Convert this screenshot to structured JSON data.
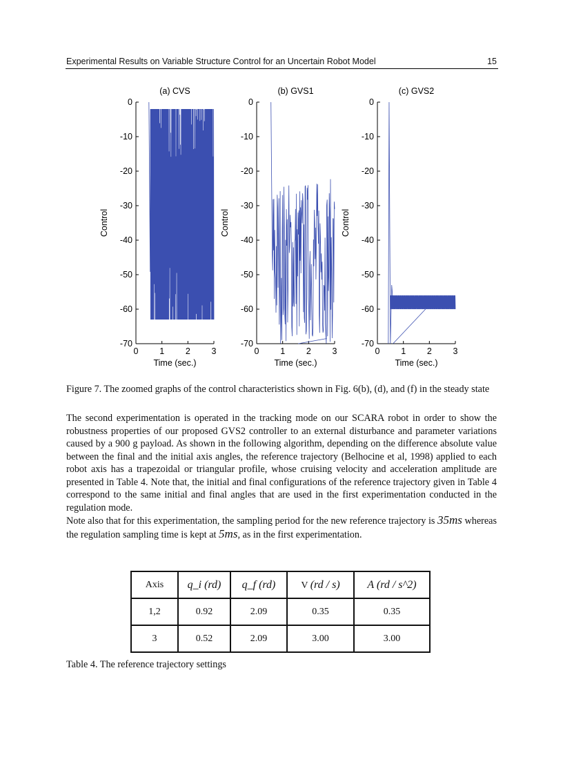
{
  "header": {
    "title": "Experimental Results on Variable Structure Control for an Uncertain Robot Model",
    "page": "15"
  },
  "chart_data": [
    {
      "type": "line",
      "title": "(a) CVS",
      "xlabel": "Time (sec.)",
      "ylabel": "Control",
      "xlim": [
        0,
        3
      ],
      "ylim": [
        -70,
        0
      ],
      "xticks": [
        "0",
        "1",
        "2",
        "3"
      ],
      "yticks": [
        "0",
        "-10",
        "-20",
        "-30",
        "-40",
        "-50",
        "-60",
        "-70"
      ],
      "grid": false,
      "color": "#3b4fb0",
      "series": [
        {
          "start_time": 0.5,
          "end_time": 3.0,
          "peak": 0,
          "band": [
            -63,
            -2
          ]
        }
      ]
    },
    {
      "type": "line",
      "title": "(b) GVS1",
      "xlabel": "Time (sec.)",
      "ylabel": "Control",
      "xlim": [
        0,
        3
      ],
      "ylim": [
        -70,
        0
      ],
      "xticks": [
        "0",
        "1",
        "2",
        "3"
      ],
      "yticks": [
        "0",
        "-10",
        "-20",
        "-30",
        "-40",
        "-50",
        "-60",
        "-70"
      ],
      "grid": false,
      "color": "#3b4fb0",
      "series": [
        {
          "start_time": 0.55,
          "end_time": 3.0,
          "peak": 0,
          "band": [
            -70,
            -22
          ]
        }
      ]
    },
    {
      "type": "line",
      "title": "(c) GVS2",
      "xlabel": "Time (sec.)",
      "ylabel": "Control",
      "xlim": [
        0,
        3
      ],
      "ylim": [
        -70,
        0
      ],
      "xticks": [
        "0",
        "1",
        "2",
        "3"
      ],
      "yticks": [
        "0",
        "-10",
        "-20",
        "-30",
        "-40",
        "-50",
        "-60",
        "-70"
      ],
      "grid": false,
      "color": "#3b4fb0",
      "series": [
        {
          "start_time": 0.45,
          "end_time": 3.0,
          "peak": 0,
          "band": [
            -60,
            -56
          ]
        }
      ]
    }
  ],
  "figure_caption": "Figure 7. The zoomed graphs of the control characteristics shown in Fig. 6(b), (d), and (f) in the steady state",
  "paragraphs": [
    "The second experimentation is operated in the tracking mode on our SCARA robot in order to show the robustness properties of our proposed GVS2 controller to an external disturbance and parameter variations caused by a 900 g payload. As shown in the following algorithm, depending on the difference absolute value between the final and the initial axis angles, the reference trajectory (Belhocine et al, 1998) applied to each robot axis has a trapezoidal or triangular profile, whose cruising velocity and acceleration amplitude are presented in Table 4. Note that, the initial and final configurations of the reference trajectory given in Table 4 correspond to the same initial and final angles that are used in the first experimentation conducted in the regulation mode."
  ],
  "para2": {
    "a": "Note also that for this experimentation, the sampling period for the new reference trajectory is ",
    "m1": "35ms",
    "b": " whereas the regulation sampling time is kept at ",
    "m2": "5ms",
    "c": ", as in the first experimentation."
  },
  "table": {
    "headers": [
      "Axis",
      "q_i (rd)",
      "q_f (rd)",
      "V (rd / s)",
      "A (rd / s^2)"
    ],
    "rows": [
      [
        "1,2",
        "0.92",
        "2.09",
        "0.35",
        "0.35"
      ],
      [
        "3",
        "0.52",
        "2.09",
        "3.00",
        "3.00"
      ]
    ]
  },
  "table_caption": "Table 4. The reference trajectory settings"
}
